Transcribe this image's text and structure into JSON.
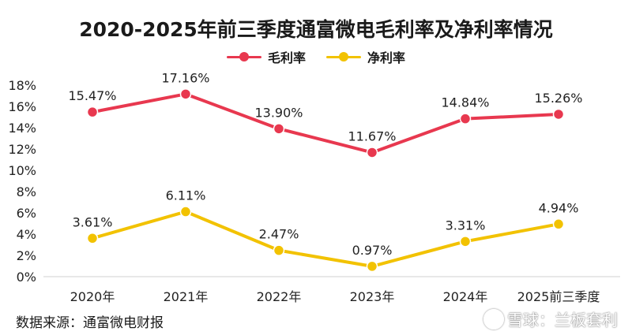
{
  "chart_data": {
    "type": "line",
    "title": "2020-2025年前三季度通富微电毛利率及净利率情况",
    "categories": [
      "2020年",
      "2021年",
      "2022年",
      "2023年",
      "2024年",
      "2025前三季度"
    ],
    "series": [
      {
        "name": "毛利率",
        "values": [
          15.47,
          17.16,
          13.9,
          11.67,
          14.84,
          15.26
        ],
        "labels": [
          "15.47%",
          "17.16%",
          "13.90%",
          "11.67%",
          "14.84%",
          "15.26%"
        ],
        "color": "#e8384f"
      },
      {
        "name": "净利率",
        "values": [
          3.61,
          6.11,
          2.47,
          0.97,
          3.31,
          4.94
        ],
        "labels": [
          "3.61%",
          "6.11%",
          "2.47%",
          "0.97%",
          "3.31%",
          "4.94%"
        ],
        "color": "#f2c200"
      }
    ],
    "ylim": [
      0,
      18
    ],
    "yticks": [
      "0%",
      "2%",
      "4%",
      "6%",
      "8%",
      "10%",
      "12%",
      "14%",
      "16%",
      "18%"
    ],
    "legend": "top-center",
    "grid": false
  },
  "footer": {
    "source": "数据来源：通富微电财报",
    "watermark": "雪球：兰板套利"
  }
}
